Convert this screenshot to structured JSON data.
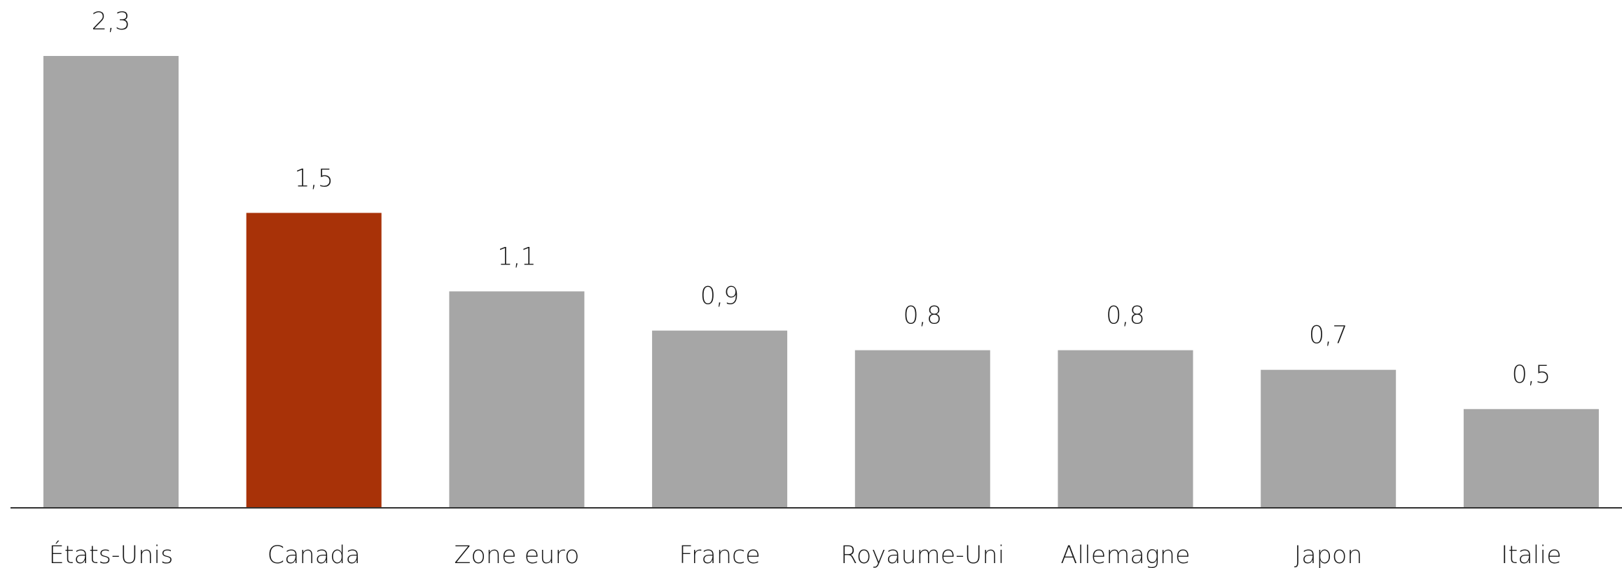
{
  "chart_data": {
    "type": "bar",
    "categories": [
      "États-Unis",
      "Canada",
      "Zone euro",
      "France",
      "Royaume-Uni",
      "Allemagne",
      "Japon",
      "Italie"
    ],
    "values": [
      2.3,
      1.5,
      1.1,
      0.9,
      0.8,
      0.8,
      0.7,
      0.5
    ],
    "value_labels": [
      "2,3",
      "1,5",
      "1,1",
      "0,9",
      "0,8",
      "0,8",
      "0,7",
      "0,5"
    ],
    "colors": [
      "#a6a6a6",
      "#a83208",
      "#a6a6a6",
      "#a6a6a6",
      "#a6a6a6",
      "#a6a6a6",
      "#a6a6a6",
      "#a6a6a6"
    ]
  }
}
